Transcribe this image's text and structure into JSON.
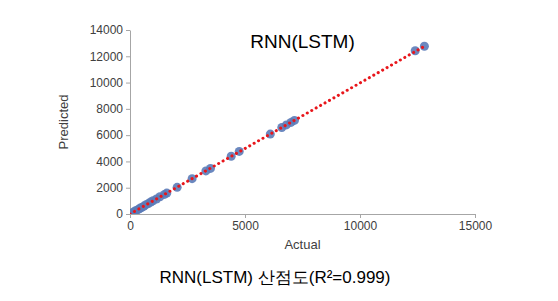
{
  "chart_data": {
    "type": "scatter",
    "title": "RNN(LSTM)",
    "subtitle": "RNN(LSTM) 산점도(R²=0.999)",
    "x_label": "Actual",
    "y_label": "Predicted",
    "xlim": [
      0,
      15000
    ],
    "xticks": [
      0,
      5000,
      10000,
      15000
    ],
    "ylim": [
      0,
      14000
    ],
    "yticks": [
      0,
      2000,
      4000,
      6000,
      8000,
      10000,
      12000,
      14000
    ],
    "grid": false,
    "series": [
      {
        "type": "scatter",
        "marker": "circle",
        "color": "#5b7bb8",
        "x": [
          20,
          80,
          150,
          220,
          300,
          380,
          450,
          530,
          610,
          700,
          800,
          900,
          1000,
          1150,
          1300,
          1500,
          1600,
          2050,
          2700,
          3300,
          3500,
          4400,
          4750,
          6100,
          6600,
          6800,
          7000,
          7150,
          12400,
          12800
        ],
        "values": [
          10,
          70,
          140,
          230,
          290,
          370,
          460,
          520,
          600,
          710,
          790,
          910,
          1010,
          1140,
          1310,
          1490,
          1590,
          2030,
          2690,
          3280,
          3470,
          4390,
          4760,
          6080,
          6580,
          6780,
          6970,
          7120,
          12420,
          12760
        ]
      },
      {
        "type": "line",
        "line_style": "dotted",
        "color": "#e8161b",
        "x": [
          0,
          12800
        ],
        "values": [
          0,
          12760
        ]
      }
    ]
  }
}
